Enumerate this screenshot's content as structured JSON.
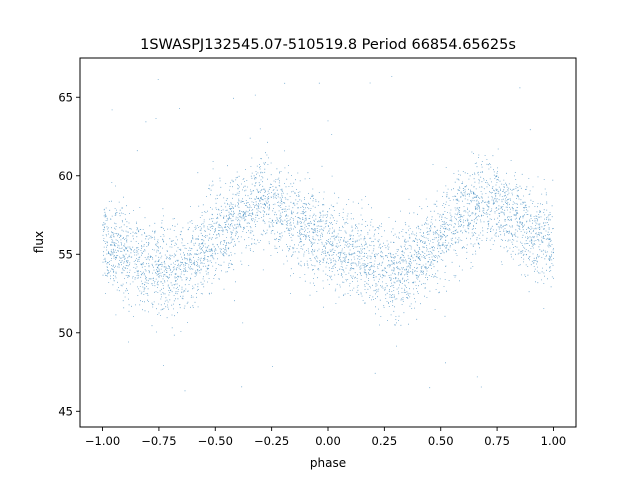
{
  "chart_data": {
    "type": "scatter",
    "title": "1SWASPJ132545.07-510519.8 Period 66854.65625s",
    "xlabel": "phase",
    "ylabel": "flux",
    "xlim": [
      -1.1,
      1.1
    ],
    "ylim": [
      44,
      67.5
    ],
    "xticks": [
      -1.0,
      -0.75,
      -0.5,
      -0.25,
      0.0,
      0.25,
      0.5,
      0.75,
      1.0
    ],
    "xtick_labels": [
      "−1.00",
      "−0.75",
      "−0.50",
      "−0.25",
      "0.00",
      "0.25",
      "0.50",
      "0.75",
      "1.00"
    ],
    "yticks": [
      45,
      50,
      55,
      60,
      65
    ],
    "ytick_labels": [
      "45",
      "50",
      "55",
      "60",
      "65"
    ],
    "grid": false,
    "marker_color": "#1f77b4",
    "series": [
      {
        "phase": [
          -1.0,
          -0.9,
          -0.8,
          -0.7,
          -0.6,
          -0.5,
          -0.4,
          -0.3,
          -0.25,
          -0.2,
          -0.1,
          0.0,
          0.1,
          0.2,
          0.3,
          0.4,
          0.5,
          0.6,
          0.7,
          0.75,
          0.8,
          0.9,
          1.0
        ],
        "flux": [
          55.8,
          55.1,
          54.3,
          53.9,
          54.6,
          56.0,
          57.6,
          58.4,
          58.2,
          57.6,
          56.5,
          55.6,
          55.0,
          54.3,
          53.9,
          54.6,
          56.0,
          57.6,
          58.4,
          58.2,
          57.6,
          56.5,
          55.8
        ],
        "scatter_sd": 1.4,
        "n_points": 26000,
        "outlier_range": [
          45,
          66.5
        ]
      }
    ]
  }
}
